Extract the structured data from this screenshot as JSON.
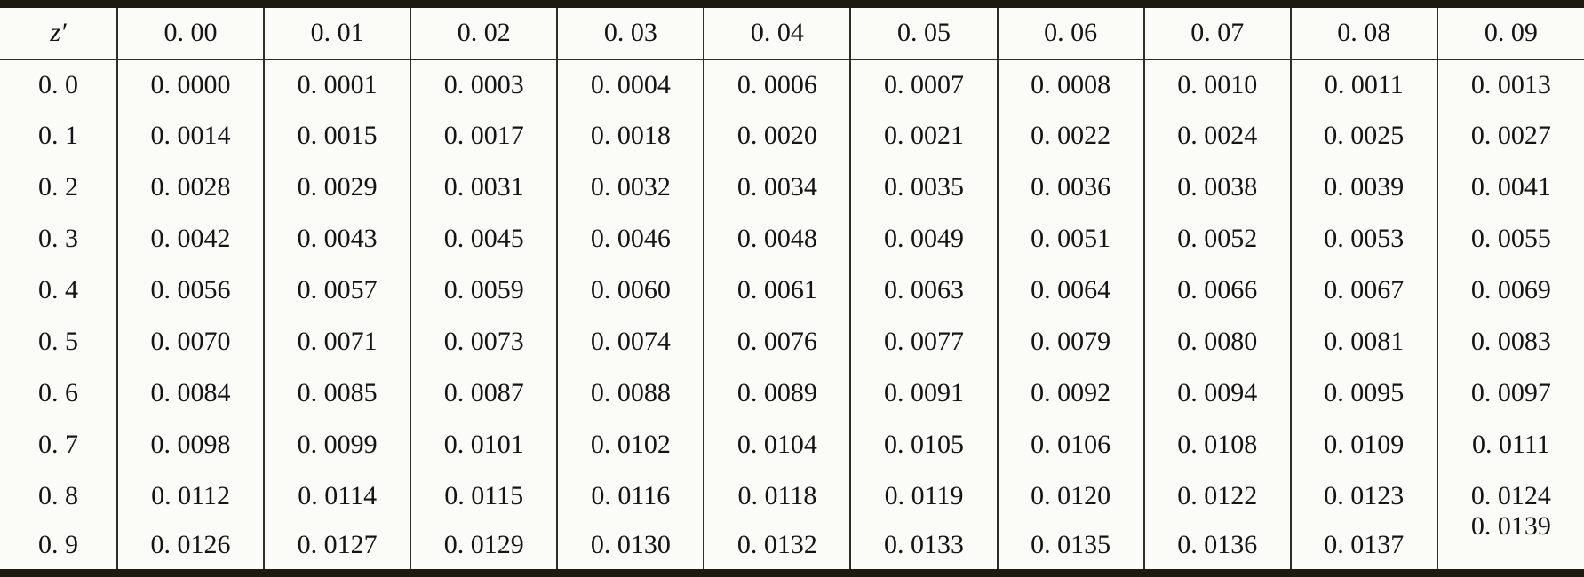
{
  "table": {
    "corner_header": "z′",
    "column_headers": [
      "0. 00",
      "0. 01",
      "0. 02",
      "0. 03",
      "0. 04",
      "0. 05",
      "0. 06",
      "0. 07",
      "0. 08",
      "0. 09"
    ],
    "row_headers": [
      "0. 0",
      "0. 1",
      "0. 2",
      "0. 3",
      "0. 4",
      "0. 5",
      "0. 6",
      "0. 7",
      "0. 8",
      "0. 9"
    ],
    "rows": [
      [
        "0. 0000",
        "0. 0001",
        "0. 0003",
        "0. 0004",
        "0. 0006",
        "0. 0007",
        "0. 0008",
        "0. 0010",
        "0. 0011",
        "0. 0013"
      ],
      [
        "0. 0014",
        "0. 0015",
        "0. 0017",
        "0. 0018",
        "0. 0020",
        "0. 0021",
        "0. 0022",
        "0. 0024",
        "0. 0025",
        "0. 0027"
      ],
      [
        "0. 0028",
        "0. 0029",
        "0. 0031",
        "0. 0032",
        "0. 0034",
        "0. 0035",
        "0. 0036",
        "0. 0038",
        "0. 0039",
        "0. 0041"
      ],
      [
        "0. 0042",
        "0. 0043",
        "0. 0045",
        "0. 0046",
        "0. 0048",
        "0. 0049",
        "0. 0051",
        "0. 0052",
        "0. 0053",
        "0. 0055"
      ],
      [
        "0. 0056",
        "0. 0057",
        "0. 0059",
        "0. 0060",
        "0. 0061",
        "0. 0063",
        "0. 0064",
        "0. 0066",
        "0. 0067",
        "0. 0069"
      ],
      [
        "0. 0070",
        "0. 0071",
        "0. 0073",
        "0. 0074",
        "0. 0076",
        "0. 0077",
        "0. 0079",
        "0. 0080",
        "0. 0081",
        "0. 0083"
      ],
      [
        "0. 0084",
        "0. 0085",
        "0. 0087",
        "0. 0088",
        "0. 0089",
        "0. 0091",
        "0. 0092",
        "0. 0094",
        "0. 0095",
        "0. 0097"
      ],
      [
        "0. 0098",
        "0. 0099",
        "0. 0101",
        "0. 0102",
        "0. 0104",
        "0. 0105",
        "0. 0106",
        "0. 0108",
        "0. 0109",
        "0. 0111"
      ],
      [
        "0. 0112",
        "0. 0114",
        "0. 0115",
        "0. 0116",
        "0. 0118",
        "0. 0119",
        "0. 0120",
        "0. 0122",
        "0. 0123",
        "0. 0124"
      ],
      [
        "0. 0126",
        "0. 0127",
        "0. 0129",
        "0. 0130",
        "0. 0132",
        "0. 0133",
        "0. 0135",
        "0. 0136",
        "0. 0137",
        "0. 0139"
      ]
    ],
    "raised_cell": {
      "row_index": 9,
      "col_index": 9
    }
  },
  "colors": {
    "thick_border": "#1b1b11",
    "thin_border": "#2e2e24",
    "background": "#fbfbf8",
    "text": "#141414"
  }
}
